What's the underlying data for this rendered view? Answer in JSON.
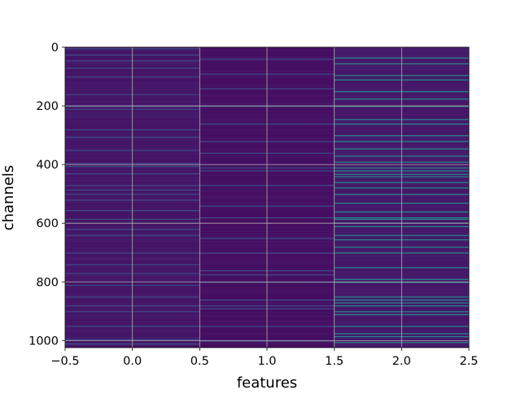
{
  "chart_data": {
    "type": "heatmap",
    "title": "",
    "xlabel": "features",
    "ylabel": "channels",
    "xlim": [
      -0.5,
      2.5
    ],
    "ylim": [
      1024,
      0
    ],
    "y_inverted": true,
    "x_ticks": [
      -0.5,
      0.0,
      0.5,
      1.0,
      1.5,
      2.0,
      2.5
    ],
    "x_tick_labels": [
      "−0.5",
      "0.0",
      "0.5",
      "1.0",
      "1.5",
      "2.0",
      "2.5"
    ],
    "y_ticks": [
      0,
      200,
      400,
      600,
      800,
      1000
    ],
    "y_tick_labels": [
      "0",
      "200",
      "400",
      "600",
      "800",
      "1000"
    ],
    "grid": true,
    "colormap": "viridis",
    "columns": [
      0,
      1,
      2
    ],
    "n_channels": 1024,
    "base_level": [
      0.07,
      0.05,
      0.08
    ],
    "bright_channels": [
      [
        3,
        25,
        45,
        70,
        100,
        160,
        200,
        210,
        280,
        305,
        350,
        395,
        405,
        430,
        470,
        485,
        500,
        520,
        555,
        585,
        620,
        640,
        700,
        740,
        770,
        810,
        850,
        880,
        900,
        950,
        995,
        1010
      ],
      [
        40,
        90,
        140,
        200,
        260,
        320,
        360,
        410,
        420,
        470,
        540,
        580,
        650,
        700,
        760,
        775,
        800,
        860,
        880,
        890,
        950,
        1000
      ],
      [
        35,
        55,
        95,
        110,
        150,
        175,
        200,
        245,
        260,
        300,
        320,
        345,
        370,
        390,
        410,
        420,
        432,
        440,
        460,
        478,
        500,
        530,
        560,
        580,
        585,
        598,
        610,
        640,
        655,
        680,
        700,
        750,
        790,
        800,
        850,
        860,
        870,
        880,
        900,
        910,
        950,
        975,
        985,
        1005
      ]
    ],
    "bright_level": [
      0.3,
      0.3,
      0.6
    ],
    "colors": {
      "axes_edge": "#000000",
      "grid": "#b0b0b0"
    }
  }
}
